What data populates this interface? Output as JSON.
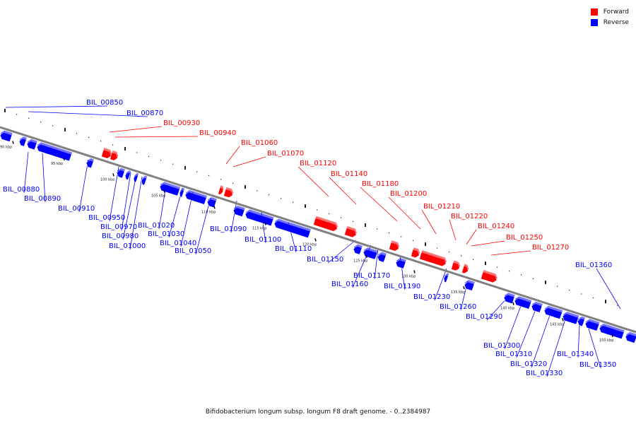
{
  "caption": "Bifidobacterium longum subsp. longum F8 draft genome. - 0..2384987",
  "legend": [
    {
      "label": "Forward",
      "color": "#ff0000"
    },
    {
      "label": "Reverse",
      "color": "#0000ff"
    }
  ],
  "colors": {
    "forward": "#ff0000",
    "reverse": "#0000ff",
    "backbone": "#808080"
  },
  "ticks": [
    "90 kbp",
    "95 kbp",
    "100 kbp",
    "105 kbp",
    "110 kbp",
    "115 kbp",
    "120 kbp",
    "125 kbp",
    "130 kbp",
    "135 kbp",
    "140 kbp",
    "145 kbp",
    "150 kbp"
  ],
  "genes_forward": [
    "BIL_00930",
    "BIL_00940",
    "BIL_01060",
    "BIL_01070",
    "BIL_01120",
    "BIL_01140",
    "BIL_01180",
    "BIL_01200",
    "BIL_01210",
    "BIL_01220",
    "BIL_01240",
    "BIL_01250",
    "BIL_01270"
  ],
  "genes_reverse": [
    "BIL_00850",
    "BIL_00870",
    "BIL_00880",
    "BIL_00890",
    "BIL_00910",
    "BIL_00950",
    "BIL_00970",
    "BIL_00980",
    "BIL_01000",
    "BIL_01020",
    "BIL_01030",
    "BIL_01040",
    "BIL_01050",
    "BIL_01090",
    "BIL_01100",
    "BIL_01110",
    "BIL_01150",
    "BIL_01160",
    "BIL_01170",
    "BIL_01190",
    "BIL_01230",
    "BIL_01260",
    "BIL_01290",
    "BIL_01300",
    "BIL_01310",
    "BIL_01320",
    "BIL_01330",
    "BIL_01340",
    "BIL_01350",
    "BIL_01360"
  ]
}
